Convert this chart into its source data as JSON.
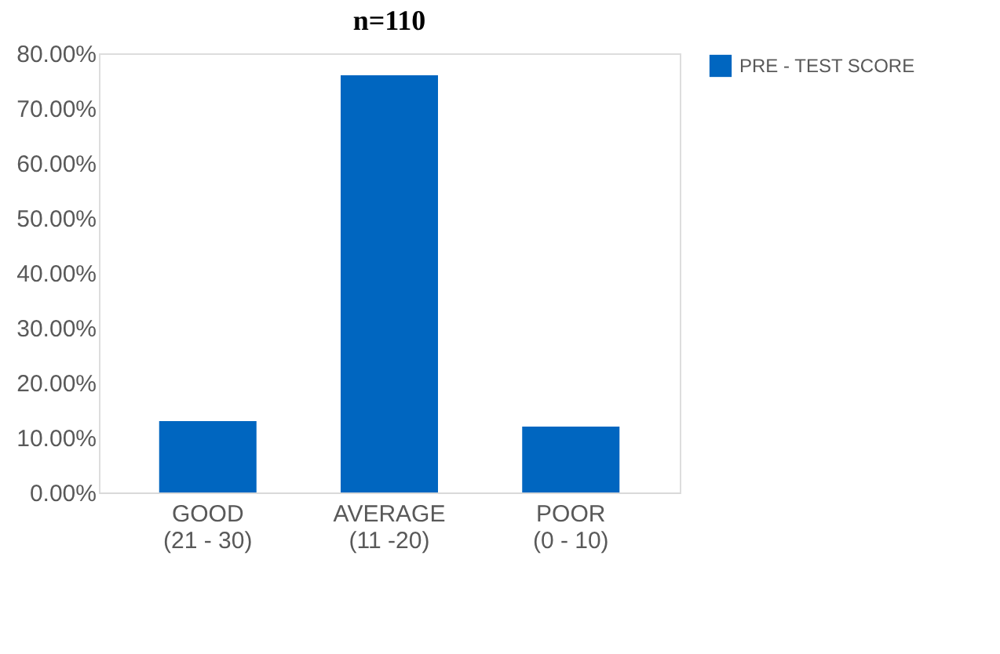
{
  "chart_data": {
    "type": "bar",
    "title": "n=110",
    "categories": [
      "GOOD\n(21 - 30)",
      "AVERAGE\n(11 -20)",
      "POOR\n(0 - 10)"
    ],
    "series": [
      {
        "name": "PRE - TEST SCORE",
        "color": "#0066c0",
        "values": [
          13,
          76,
          12
        ]
      }
    ],
    "ylim": [
      0,
      80
    ],
    "yticks": [
      {
        "value": 0,
        "label": "0.00%"
      },
      {
        "value": 10,
        "label": "10.00%"
      },
      {
        "value": 20,
        "label": "20.00%"
      },
      {
        "value": 30,
        "label": "30.00%"
      },
      {
        "value": 40,
        "label": "40.00%"
      },
      {
        "value": 50,
        "label": "50.00%"
      },
      {
        "value": 60,
        "label": "60.00%"
      },
      {
        "value": 70,
        "label": "70.00%"
      },
      {
        "value": 80,
        "label": "80.00%"
      }
    ],
    "grid": false,
    "legend": "top right"
  }
}
